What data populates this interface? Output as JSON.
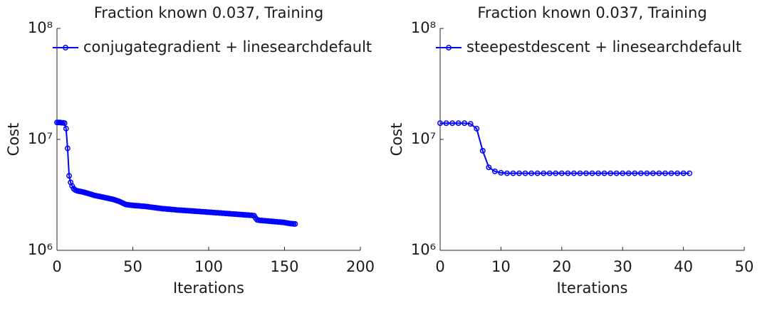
{
  "chart_data": [
    {
      "type": "line",
      "title": "Fraction known 0.037, Training",
      "xlabel": "Iterations",
      "ylabel": "Cost",
      "x": [
        0,
        1,
        2,
        3,
        4,
        5,
        6,
        7,
        8,
        9,
        10,
        11,
        12,
        13,
        14,
        15,
        16,
        17,
        18,
        19,
        20,
        21,
        22,
        23,
        24,
        25,
        26,
        27,
        28,
        29,
        30,
        31,
        32,
        33,
        34,
        35,
        36,
        37,
        38,
        39,
        40,
        41,
        42,
        43,
        44,
        45,
        46,
        47,
        48,
        49,
        50,
        51,
        52,
        53,
        54,
        55,
        56,
        57,
        58,
        59,
        60,
        61,
        62,
        63,
        64,
        65,
        66,
        67,
        68,
        69,
        70,
        71,
        72,
        73,
        74,
        75,
        76,
        77,
        78,
        79,
        80,
        81,
        82,
        83,
        84,
        85,
        86,
        87,
        88,
        89,
        90,
        91,
        92,
        93,
        94,
        95,
        96,
        97,
        98,
        99,
        100,
        101,
        102,
        103,
        104,
        105,
        106,
        107,
        108,
        109,
        110,
        111,
        112,
        113,
        114,
        115,
        116,
        117,
        118,
        119,
        120,
        121,
        122,
        123,
        124,
        125,
        126,
        127,
        128,
        129,
        130,
        131,
        132,
        133,
        134,
        135,
        136,
        137,
        138,
        139,
        140,
        141,
        142,
        143,
        144,
        145,
        146,
        147,
        148,
        149,
        150,
        151,
        152,
        153,
        154,
        155,
        156,
        157
      ],
      "series": [
        {
          "name": "conjugategradient + linesearchdefault",
          "color": "#0000ff",
          "values": [
            14200000.0,
            14200000.0,
            14200000.0,
            14100000.0,
            14100000.0,
            14000000.0,
            12500000.0,
            8300000.0,
            4700000.0,
            4100000.0,
            3800000.0,
            3600000.0,
            3500000.0,
            3450000.0,
            3420000.0,
            3400000.0,
            3380000.0,
            3360000.0,
            3330000.0,
            3300000.0,
            3270000.0,
            3240000.0,
            3210000.0,
            3180000.0,
            3150000.0,
            3120000.0,
            3100000.0,
            3080000.0,
            3060000.0,
            3040000.0,
            3020000.0,
            3000000.0,
            2980000.0,
            2960000.0,
            2940000.0,
            2920000.0,
            2900000.0,
            2880000.0,
            2850000.0,
            2820000.0,
            2790000.0,
            2760000.0,
            2720000.0,
            2680000.0,
            2640000.0,
            2600000.0,
            2580000.0,
            2570000.0,
            2560000.0,
            2550000.0,
            2540000.0,
            2530000.0,
            2530000.0,
            2520000.0,
            2520000.0,
            2510000.0,
            2500000.0,
            2500000.0,
            2490000.0,
            2480000.0,
            2470000.0,
            2460000.0,
            2450000.0,
            2440000.0,
            2430000.0,
            2420000.0,
            2410000.0,
            2400000.0,
            2390000.0,
            2380000.0,
            2370000.0,
            2370000.0,
            2360000.0,
            2350000.0,
            2350000.0,
            2340000.0,
            2330000.0,
            2330000.0,
            2320000.0,
            2310000.0,
            2310000.0,
            2300000.0,
            2300000.0,
            2290000.0,
            2290000.0,
            2280000.0,
            2280000.0,
            2270000.0,
            2270000.0,
            2260000.0,
            2260000.0,
            2250000.0,
            2250000.0,
            2240000.0,
            2240000.0,
            2230000.0,
            2230000.0,
            2220000.0,
            2220000.0,
            2210000.0,
            2210000.0,
            2200000.0,
            2200000.0,
            2190000.0,
            2190000.0,
            2180000.0,
            2180000.0,
            2170000.0,
            2170000.0,
            2160000.0,
            2160000.0,
            2150000.0,
            2150000.0,
            2140000.0,
            2140000.0,
            2130000.0,
            2130000.0,
            2120000.0,
            2120000.0,
            2110000.0,
            2110000.0,
            2100000.0,
            2100000.0,
            2090000.0,
            2090000.0,
            2080000.0,
            2080000.0,
            2070000.0,
            2070000.0,
            2060000.0,
            2050000.0,
            1950000.0,
            1880000.0,
            1870000.0,
            1860000.0,
            1860000.0,
            1850000.0,
            1850000.0,
            1840000.0,
            1840000.0,
            1830000.0,
            1830000.0,
            1820000.0,
            1820000.0,
            1810000.0,
            1810000.0,
            1800000.0,
            1800000.0,
            1790000.0,
            1790000.0,
            1780000.0,
            1770000.0,
            1760000.0,
            1750000.0,
            1740000.0,
            1740000.0,
            1730000.0,
            1730000.0
          ]
        }
      ],
      "xlim": [
        0,
        200
      ],
      "xticks": [
        0,
        50,
        100,
        150,
        200
      ],
      "ylim": [
        1000000,
        100000000
      ],
      "yticks": [
        {
          "value": 1000000,
          "label": "10⁶"
        },
        {
          "value": 10000000,
          "label": "10⁷"
        },
        {
          "value": 100000000,
          "label": "10⁸"
        }
      ],
      "ylog": true,
      "legend": "upper left",
      "marker": "circle"
    },
    {
      "type": "line",
      "title": "Fraction known 0.037, Training",
      "xlabel": "Iterations",
      "ylabel": "Cost",
      "x": [
        0,
        1,
        2,
        3,
        4,
        5,
        6,
        7,
        8,
        9,
        10,
        11,
        12,
        13,
        14,
        15,
        16,
        17,
        18,
        19,
        20,
        21,
        22,
        23,
        24,
        25,
        26,
        27,
        28,
        29,
        30,
        31,
        32,
        33,
        34,
        35,
        36,
        37,
        38,
        39,
        40,
        41
      ],
      "series": [
        {
          "name": "steepestdescent + linesearchdefault",
          "color": "#0000ff",
          "values": [
            14000000.0,
            14000000.0,
            14000000.0,
            14000000.0,
            14000000.0,
            13800000.0,
            12500000.0,
            7900000.0,
            5600000.0,
            5150000.0,
            5000000.0,
            4950000.0,
            4950000.0,
            4950000.0,
            4950000.0,
            4950000.0,
            4950000.0,
            4950000.0,
            4950000.0,
            4950000.0,
            4950000.0,
            4950000.0,
            4950000.0,
            4950000.0,
            4950000.0,
            4950000.0,
            4950000.0,
            4950000.0,
            4950000.0,
            4950000.0,
            4950000.0,
            4950000.0,
            4950000.0,
            4950000.0,
            4950000.0,
            4950000.0,
            4950000.0,
            4950000.0,
            4950000.0,
            4950000.0,
            4950000.0,
            4950000.0
          ]
        }
      ],
      "xlim": [
        0,
        50
      ],
      "xticks": [
        0,
        10,
        20,
        30,
        40,
        50
      ],
      "ylim": [
        1000000,
        100000000
      ],
      "yticks": [
        {
          "value": 1000000,
          "label": "10⁶"
        },
        {
          "value": 10000000,
          "label": "10⁷"
        },
        {
          "value": 100000000,
          "label": "10⁸"
        }
      ],
      "ylog": true,
      "legend": "upper left",
      "marker": "circle"
    }
  ]
}
